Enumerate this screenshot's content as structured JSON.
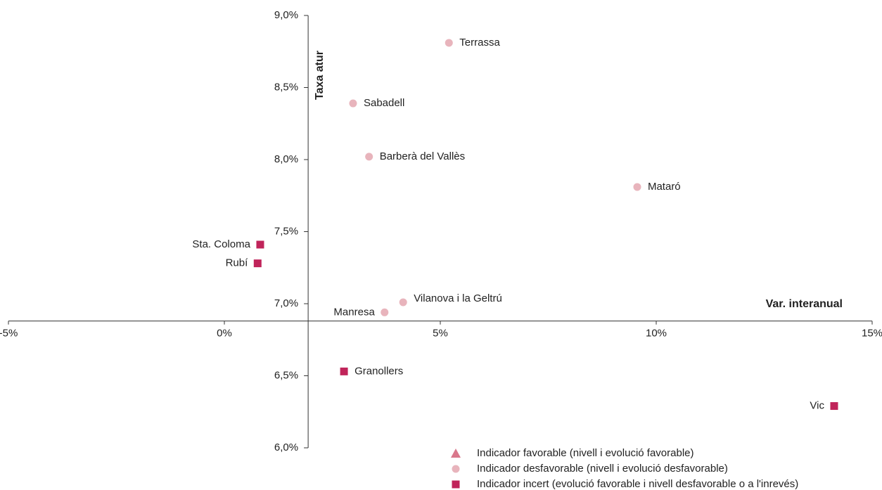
{
  "chart_data": {
    "type": "scatter",
    "x_label": "Var. interanual",
    "y_label": "Taxa atur",
    "xlim": [
      -5,
      15
    ],
    "ylim": [
      6.0,
      9.0
    ],
    "xticks": [
      {
        "value": -5,
        "label": "-5%"
      },
      {
        "value": 0,
        "label": "0%"
      },
      {
        "value": 5,
        "label": "5%"
      },
      {
        "value": 10,
        "label": "10%"
      },
      {
        "value": 15,
        "label": "15%"
      }
    ],
    "yticks": [
      {
        "value": 6.0,
        "label": "6,0%"
      },
      {
        "value": 6.5,
        "label": "6,5%"
      },
      {
        "value": 7.0,
        "label": "7,0%"
      },
      {
        "value": 7.5,
        "label": "7,5%"
      },
      {
        "value": 8.0,
        "label": "8,0%"
      },
      {
        "value": 8.5,
        "label": "8,5%"
      },
      {
        "value": 9.0,
        "label": "9,0%"
      }
    ],
    "x_axis_at": 6.88,
    "y_axis_at": 1.94,
    "series": [
      {
        "name": "Indicador favorable (nivell i evolució favorable)",
        "color": "#d9788c",
        "marker": "triangle",
        "labels": [],
        "x": [],
        "values": []
      },
      {
        "name": "Indicador desfavorable (nivell i evolució desfavorable)",
        "color": "#e8b4bc",
        "marker": "circle",
        "labels": [
          "Terrassa",
          "Sabadell",
          "Barberà del Vallès",
          "Mataró",
          "Vilanova i la Geltrú",
          "Manresa"
        ],
        "x": [
          5.2,
          2.98,
          3.35,
          9.56,
          4.14,
          3.71
        ],
        "values": [
          8.81,
          8.39,
          8.02,
          7.81,
          7.01,
          6.94
        ]
      },
      {
        "name": "Indicador incert (evolució favorable i nivell desfavorable o a l'inrevés)",
        "color": "#c0245a",
        "marker": "square",
        "labels": [
          "Sta. Coloma",
          "Rubí",
          "Granollers",
          "Vic"
        ],
        "x": [
          0.83,
          0.77,
          2.77,
          14.12
        ],
        "values": [
          7.41,
          7.28,
          6.53,
          6.29
        ]
      }
    ]
  }
}
